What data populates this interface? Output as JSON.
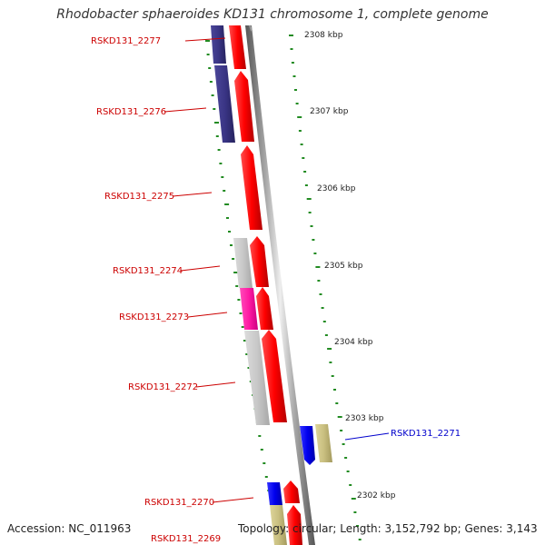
{
  "title": "Rhodobacter sphaeroides KD131 chromosome 1, complete genome",
  "footer": {
    "accession": "Accession: NC_011963",
    "summary": "Topology: circular; Length: 3,152,792 bp; Genes: 3,143"
  },
  "scale": {
    "ticks": [
      "2308 kbp",
      "2307 kbp",
      "2306 kbp",
      "2305 kbp",
      "2304 kbp",
      "2303 kbp",
      "2302 kbp"
    ]
  },
  "gene_labels": [
    {
      "text": "RSKD131_2277",
      "color": "#cc0000"
    },
    {
      "text": "RSKD131_2276",
      "color": "#cc0000"
    },
    {
      "text": "RSKD131_2275",
      "color": "#cc0000"
    },
    {
      "text": "RSKD131_2274",
      "color": "#cc0000"
    },
    {
      "text": "RSKD131_2273",
      "color": "#cc0000"
    },
    {
      "text": "RSKD131_2272",
      "color": "#cc0000"
    },
    {
      "text": "RSKD131_2271",
      "color": "#0000cc"
    },
    {
      "text": "RSKD131_2270",
      "color": "#cc0000"
    },
    {
      "text": "RSKD131_2269",
      "color": "#cc0000"
    }
  ],
  "colors": {
    "cds_forward": "#ff0000",
    "cds_reverse_blue": "#0000ee",
    "purple": "#3a3585",
    "grey": "#c8c8c8",
    "pink": "#ff1aa3",
    "khaki": "#c9bf80",
    "backbone": "#888888",
    "tick_marks": "#228b22"
  }
}
